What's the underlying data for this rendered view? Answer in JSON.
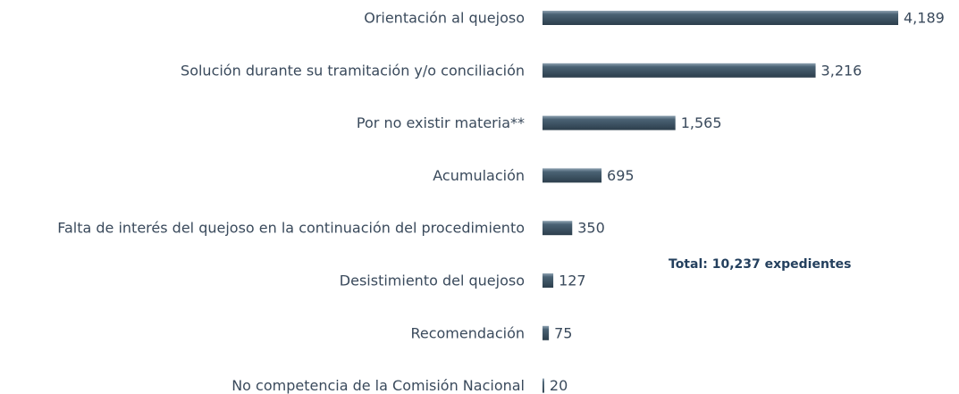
{
  "chart_data": {
    "type": "barh",
    "categories": [
      "Orientación al quejoso",
      "Solución durante su tramitación y/o conciliación",
      "Por no existir materia**",
      "Acumulación",
      "Falta de interés del quejoso en la continuación del procedimiento",
      "Desistimiento del quejoso",
      "Recomendación",
      "No competencia de la Comisión Nacional"
    ],
    "values": [
      4189,
      3216,
      1565,
      695,
      350,
      127,
      75,
      20
    ],
    "value_labels": [
      "4,189",
      "3,216",
      "1,565",
      "695",
      "350",
      "127",
      "75",
      "20"
    ],
    "color": "#4a6274",
    "annotations": [
      "Total: 10,237 expedientes"
    ]
  }
}
